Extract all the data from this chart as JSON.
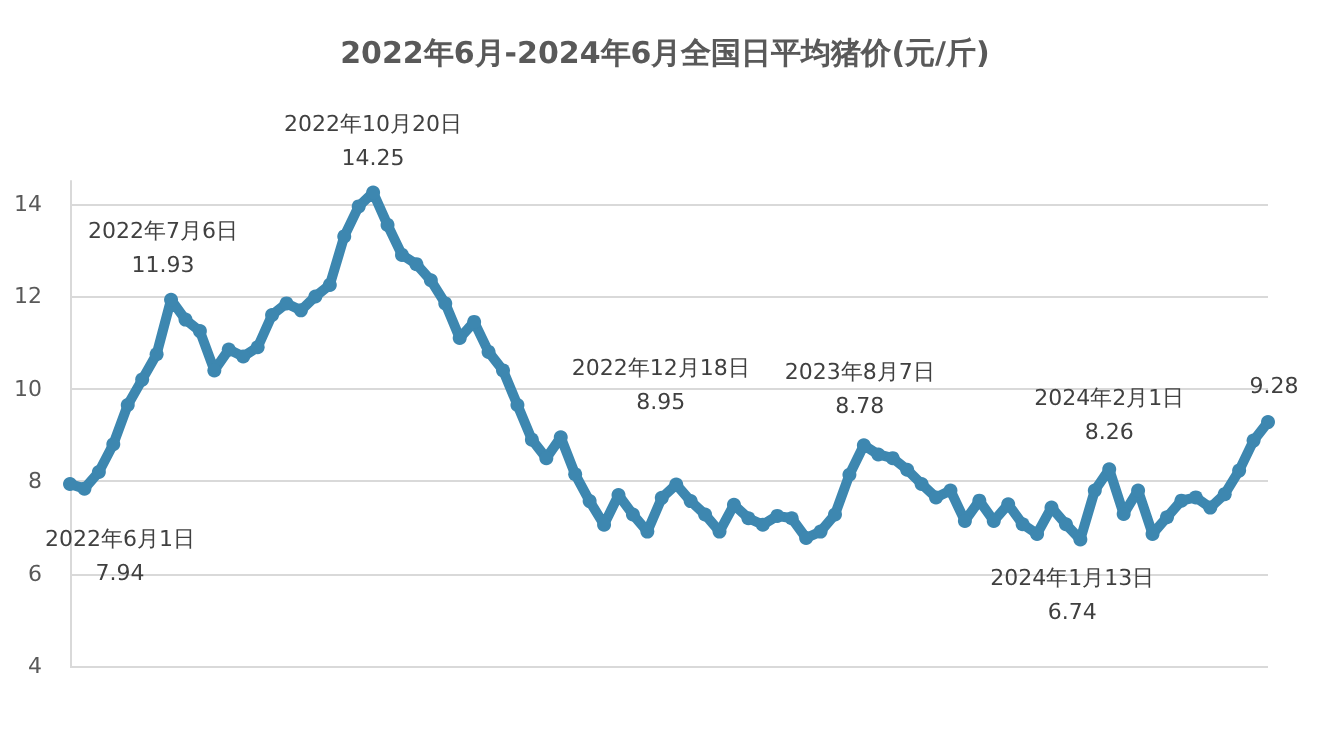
{
  "chart_data": {
    "type": "line",
    "title": "2022年6月-2024年6月全国日平均猪价(元/斤)",
    "categories": [
      null,
      null,
      null,
      null,
      null,
      null,
      null,
      null,
      null,
      null,
      null,
      null,
      null,
      null,
      null,
      null,
      null,
      null,
      null,
      null,
      null,
      null,
      null,
      null,
      null,
      null,
      null,
      null,
      null,
      null,
      null,
      null,
      null,
      null,
      null,
      null,
      null,
      null,
      null,
      null,
      null,
      null,
      null,
      null,
      null,
      null,
      null,
      null,
      null,
      null,
      null,
      null,
      null,
      null,
      null,
      null,
      null,
      null,
      null,
      null,
      null,
      null,
      null,
      null,
      null,
      null,
      null,
      null,
      null,
      null,
      null,
      null,
      null,
      null,
      null,
      null,
      null,
      null,
      null,
      null,
      null,
      null,
      null,
      null
    ],
    "series": [
      {
        "color": "#3d87b0",
        "values": [
          7.94,
          7.84,
          8.2,
          8.8,
          9.65,
          10.2,
          10.75,
          11.93,
          11.5,
          11.25,
          10.4,
          10.85,
          10.7,
          10.9,
          11.6,
          11.85,
          11.7,
          12.0,
          12.25,
          13.3,
          13.95,
          14.25,
          13.55,
          12.9,
          12.7,
          12.35,
          11.85,
          11.1,
          11.45,
          10.8,
          10.4,
          9.65,
          8.9,
          8.5,
          8.95,
          8.15,
          7.57,
          7.06,
          7.7,
          7.28,
          6.91,
          7.64,
          7.93,
          7.57,
          7.28,
          6.91,
          7.49,
          7.2,
          7.06,
          7.25,
          7.2,
          6.77,
          6.91,
          7.28,
          8.14,
          8.78,
          8.58,
          8.5,
          8.25,
          7.94,
          7.65,
          7.8,
          7.14,
          7.58,
          7.14,
          7.5,
          7.07,
          6.86,
          7.43,
          7.07,
          6.74,
          7.8,
          8.26,
          7.29,
          7.8,
          6.86,
          7.22,
          7.58,
          7.65,
          7.43,
          7.72,
          8.23,
          8.88,
          9.28
        ],
        "value_labels": [
          "2022年6月1日\n7.94",
          null,
          null,
          null,
          null,
          null,
          null,
          "2022年7月6日\n11.93",
          null,
          null,
          null,
          null,
          null,
          null,
          null,
          null,
          null,
          null,
          null,
          null,
          null,
          "2022年10月20日\n14.25",
          null,
          null,
          null,
          null,
          null,
          null,
          null,
          null,
          null,
          null,
          null,
          null,
          "2022年12月18日\n8.95",
          null,
          null,
          null,
          null,
          null,
          null,
          null,
          null,
          null,
          null,
          null,
          null,
          null,
          null,
          null,
          null,
          null,
          null,
          null,
          null,
          "2023年8月7日\n8.78",
          null,
          null,
          null,
          null,
          null,
          null,
          null,
          null,
          null,
          null,
          null,
          null,
          null,
          null,
          "2024年1月13日\n6.74",
          null,
          "2024年2月1日\n8.26",
          null,
          null,
          null,
          null,
          null,
          null,
          null,
          null,
          null,
          null,
          "9.28"
        ]
      }
    ],
    "ylim": [
      4,
      14.5
    ],
    "yticks": [
      4,
      6,
      8,
      10,
      12,
      14
    ],
    "grid": "y",
    "tick_labels": "y",
    "marker": "circle",
    "line_style": "solid"
  }
}
